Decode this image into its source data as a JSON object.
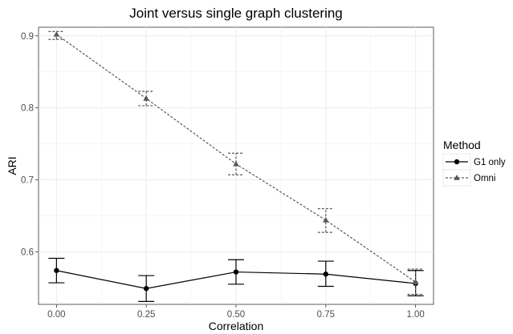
{
  "chart_data": {
    "type": "line",
    "title": "Joint versus single graph clustering",
    "xlabel": "Correlation",
    "ylabel": "ARI",
    "x": [
      0.0,
      0.25,
      0.5,
      0.75,
      1.0
    ],
    "x_tick_labels": [
      "0.00",
      "0.25",
      "0.50",
      "0.75",
      "1.00"
    ],
    "xlim": [
      -0.05,
      1.05
    ],
    "y_ticks": [
      0.6,
      0.7,
      0.8,
      0.9
    ],
    "y_tick_labels": [
      "0.6",
      "0.7",
      "0.8",
      "0.9"
    ],
    "ylim": [
      0.527,
      0.912
    ],
    "grid": true,
    "legend": {
      "title": "Method",
      "position": "right"
    },
    "series": [
      {
        "name": "G1 only",
        "values": [
          0.574,
          0.549,
          0.572,
          0.569,
          0.556
        ],
        "err_low": [
          0.557,
          0.531,
          0.555,
          0.552,
          0.539
        ],
        "err_high": [
          0.591,
          0.567,
          0.589,
          0.587,
          0.574
        ],
        "line_style": "solid",
        "marker": "circle",
        "color": "#000000"
      },
      {
        "name": "Omni",
        "values": [
          0.902,
          0.813,
          0.722,
          0.644,
          0.558
        ],
        "err_low": [
          0.895,
          0.803,
          0.707,
          0.627,
          0.541
        ],
        "err_high": [
          0.906,
          0.823,
          0.737,
          0.66,
          0.576
        ],
        "line_style": "dashed",
        "marker": "triangle",
        "color": "#595959"
      }
    ]
  }
}
